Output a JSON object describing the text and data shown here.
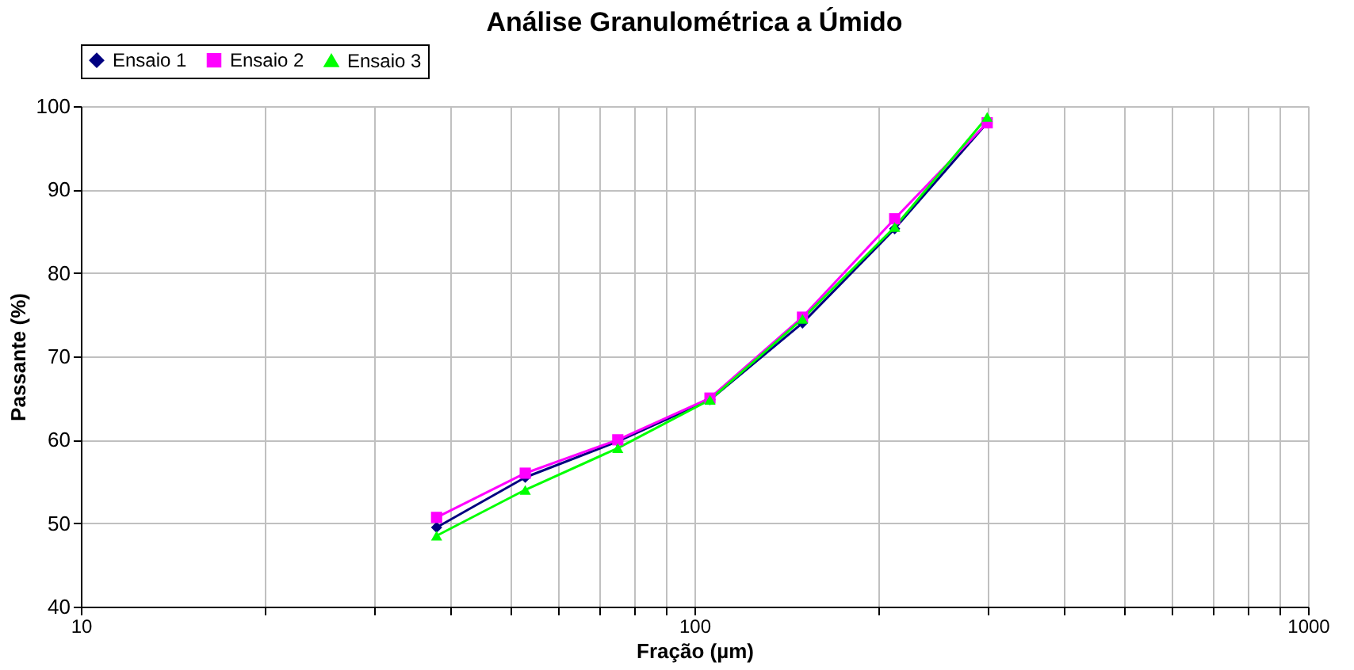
{
  "chart_data": {
    "type": "line",
    "title": "Análise Granulométrica a Úmido",
    "xlabel": "Fração (µm)",
    "ylabel": "Passante (%)",
    "x": [
      38,
      53,
      75,
      106,
      150,
      212,
      300
    ],
    "series": [
      {
        "name": "Ensaio 1",
        "color": "#000080",
        "marker": "diamond",
        "values": [
          49.5,
          55.5,
          59.8,
          64.8,
          74,
          85.3,
          98
        ]
      },
      {
        "name": "Ensaio 2",
        "color": "#ff00ff",
        "marker": "square",
        "values": [
          50.7,
          56,
          60,
          65,
          74.7,
          86.5,
          98
        ]
      },
      {
        "name": "Ensaio 3",
        "color": "#00ff00",
        "marker": "triangle",
        "values": [
          48.5,
          54,
          59,
          64.8,
          74.5,
          85.5,
          98.7
        ]
      }
    ],
    "log": "x",
    "xlim": [
      10,
      1000
    ],
    "xticks": [
      10,
      {
        "value": 20,
        "label": null
      },
      {
        "value": 30,
        "label": null
      },
      {
        "value": 40,
        "label": null
      },
      {
        "value": 50,
        "label": null
      },
      {
        "value": 60,
        "label": null
      },
      {
        "value": 70,
        "label": null
      },
      {
        "value": 80,
        "label": null
      },
      {
        "value": 90,
        "label": null
      },
      100,
      {
        "value": 200,
        "label": null
      },
      {
        "value": 300,
        "label": null
      },
      {
        "value": 400,
        "label": null
      },
      {
        "value": 500,
        "label": null
      },
      {
        "value": 600,
        "label": null
      },
      {
        "value": 700,
        "label": null
      },
      {
        "value": 800,
        "label": null
      },
      {
        "value": 900,
        "label": null
      },
      1000
    ],
    "ylim": [
      40,
      100
    ],
    "yticks": [
      40,
      50,
      60,
      70,
      80,
      90,
      100
    ],
    "grid": true,
    "legend": "top",
    "line_style": "solid"
  }
}
